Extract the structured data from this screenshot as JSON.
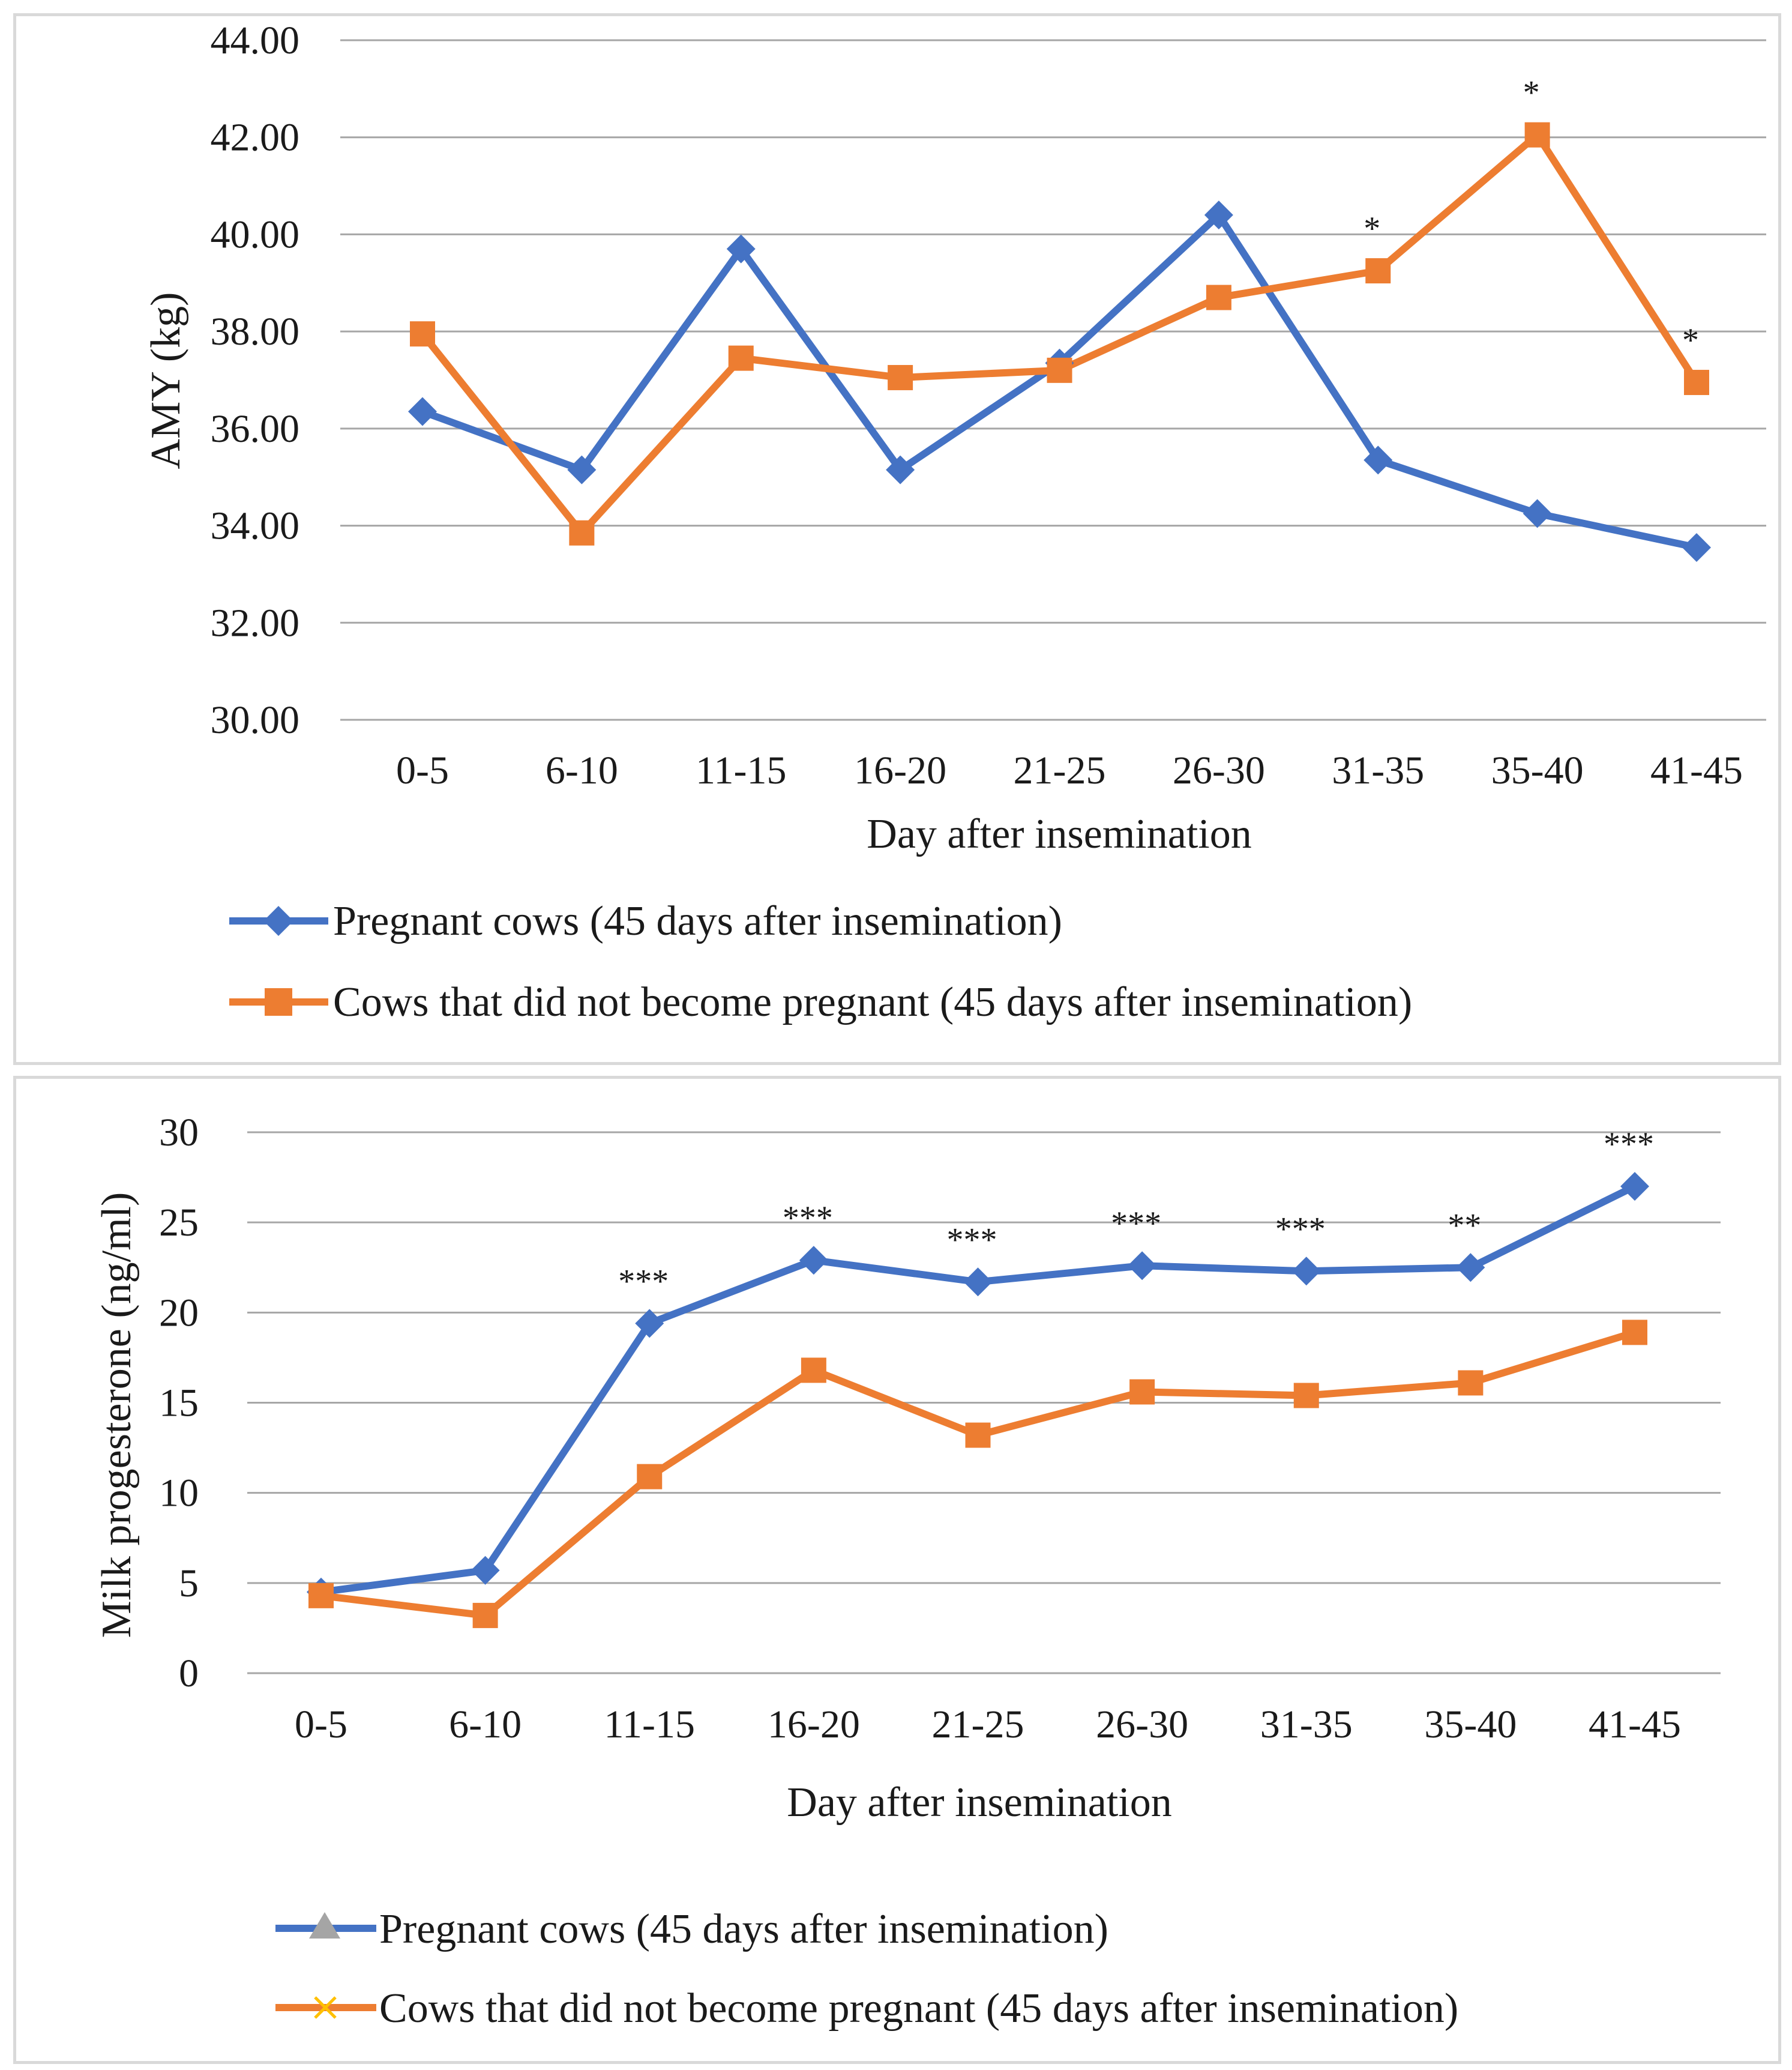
{
  "chart_data": [
    {
      "type": "line",
      "title": "",
      "xlabel": "Day after insemination",
      "ylabel": "AMY (kg)",
      "ylim": [
        30,
        44
      ],
      "yticks": [
        "30.00",
        "32.00",
        "34.00",
        "36.00",
        "38.00",
        "40.00",
        "42.00",
        "44.00"
      ],
      "ytick_values": [
        30,
        32,
        34,
        36,
        38,
        40,
        42,
        44
      ],
      "categories": [
        "0-5",
        "6-10",
        "11-15",
        "16-20",
        "21-25",
        "26-30",
        "31-35",
        "35-40",
        "41-45"
      ],
      "grid": true,
      "legend_position": "bottom",
      "series": [
        {
          "name": "Pregnant cows (45 days after insemination)",
          "values": [
            36.35,
            35.15,
            39.7,
            35.15,
            37.35,
            40.4,
            35.35,
            34.25,
            33.55
          ],
          "color": "#4472c4",
          "marker": "diamond"
        },
        {
          "name": "Cows that did not become pregnant (45 days after insemination)",
          "values": [
            37.95,
            33.85,
            37.45,
            37.05,
            37.2,
            38.7,
            39.25,
            42.05,
            36.95
          ],
          "color": "#ed7d31",
          "marker": "square"
        }
      ],
      "annotations": [
        {
          "category": "31-35",
          "text": "*"
        },
        {
          "category": "35-40",
          "text": "*"
        },
        {
          "category": "41-45",
          "text": "*"
        }
      ]
    },
    {
      "type": "line",
      "title": "",
      "xlabel": "Day after insemination",
      "ylabel": "Milk progesterone (ng/ml)",
      "ylim": [
        0,
        30
      ],
      "yticks": [
        "0",
        "5",
        "10",
        "15",
        "20",
        "25",
        "30"
      ],
      "ytick_values": [
        0,
        5,
        10,
        15,
        20,
        25,
        30
      ],
      "categories": [
        "0-5",
        "6-10",
        "11-15",
        "16-20",
        "21-25",
        "26-30",
        "31-35",
        "35-40",
        "41-45"
      ],
      "grid": true,
      "legend_position": "bottom",
      "series": [
        {
          "name": "Pregnant cows (45 days after insemination)",
          "values": [
            4.5,
            5.7,
            19.4,
            22.9,
            21.7,
            22.6,
            22.3,
            22.5,
            27.0
          ],
          "color": "#4472c4",
          "marker": "diamond",
          "legend_marker": "triangle",
          "legend_marker_color": "#a5a5a5"
        },
        {
          "name": "Cows that did not become pregnant (45 days after insemination)",
          "values": [
            4.3,
            3.2,
            10.9,
            16.8,
            13.2,
            15.6,
            15.4,
            16.1,
            18.9
          ],
          "color": "#ed7d31",
          "marker": "square",
          "legend_marker": "x",
          "legend_marker_color": "#ffc000"
        }
      ],
      "annotations": [
        {
          "category": "11-15",
          "text": "***"
        },
        {
          "category": "16-20",
          "text": "***"
        },
        {
          "category": "21-25",
          "text": "***"
        },
        {
          "category": "26-30",
          "text": "***"
        },
        {
          "category": "31-35",
          "text": "***"
        },
        {
          "category": "35-40",
          "text": "**"
        },
        {
          "category": "41-45",
          "text": "***"
        }
      ]
    }
  ]
}
